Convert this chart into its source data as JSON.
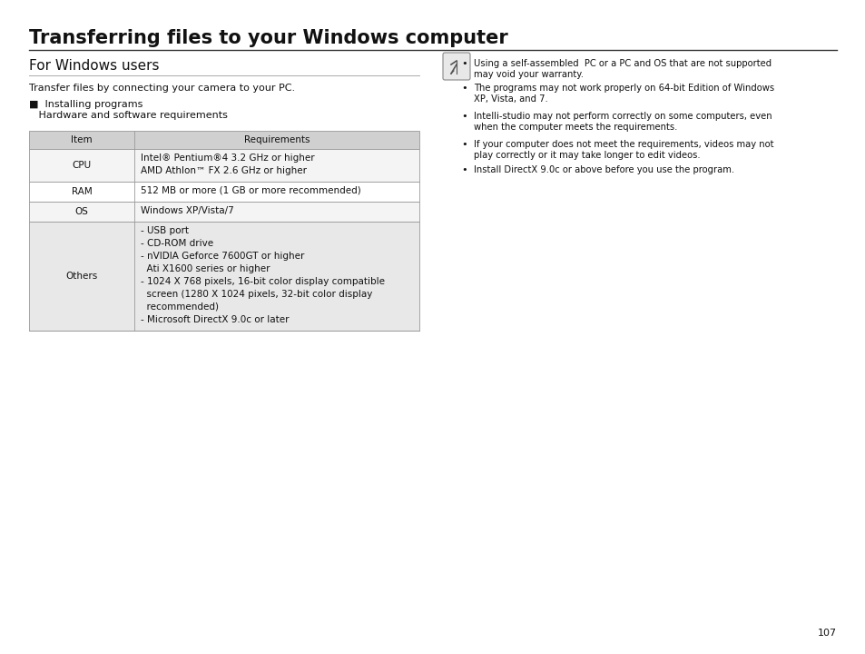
{
  "title": "Transferring files to your Windows computer",
  "section_header": "For Windows users",
  "intro_text": "Transfer files by connecting your camera to your PC.",
  "installing_label": "■  Installing programs",
  "hw_sw_label": "   Hardware and software requirements",
  "table_header": [
    "Item",
    "Requirements"
  ],
  "table_rows": [
    [
      "CPU",
      "Intel® Pentium®4 3.2 GHz or higher\nAMD Athlon™ FX 2.6 GHz or higher"
    ],
    [
      "RAM",
      "512 MB or more (1 GB or more recommended)"
    ],
    [
      "OS",
      "Windows XP/Vista/7"
    ],
    [
      "Others",
      "- USB port\n- CD-ROM drive\n- nVIDIA Geforce 7600GT or higher\n  Ati X1600 series or higher\n- 1024 X 768 pixels, 16-bit color display compatible\n  screen (1280 X 1024 pixels, 32-bit color display\n  recommended)\n- Microsoft DirectX 9.0c or later"
    ]
  ],
  "notes": [
    "Using a self-assembled  PC or a PC and OS that are not supported\nmay void your warranty.",
    "The programs may not work properly on 64-bit Edition of Windows\nXP, Vista, and 7.",
    "Intelli-studio may not perform correctly on some computers, even\nwhen the computer meets the requirements.",
    "If your computer does not meet the requirements, videos may not\nplay correctly or it may take longer to edit videos.",
    "Install DirectX 9.0c or above before you use the program."
  ],
  "page_number": "107",
  "bg_color": "#ffffff",
  "table_header_bg": "#d0d0d0",
  "table_cpu_bg": "#f4f4f4",
  "table_ram_bg": "#ffffff",
  "table_os_bg": "#f4f4f4",
  "table_others_bg": "#e8e8e8",
  "title_font_size": 15,
  "section_font_size": 11,
  "body_font_size": 8,
  "table_font_size": 7.5,
  "note_font_size": 7.2
}
